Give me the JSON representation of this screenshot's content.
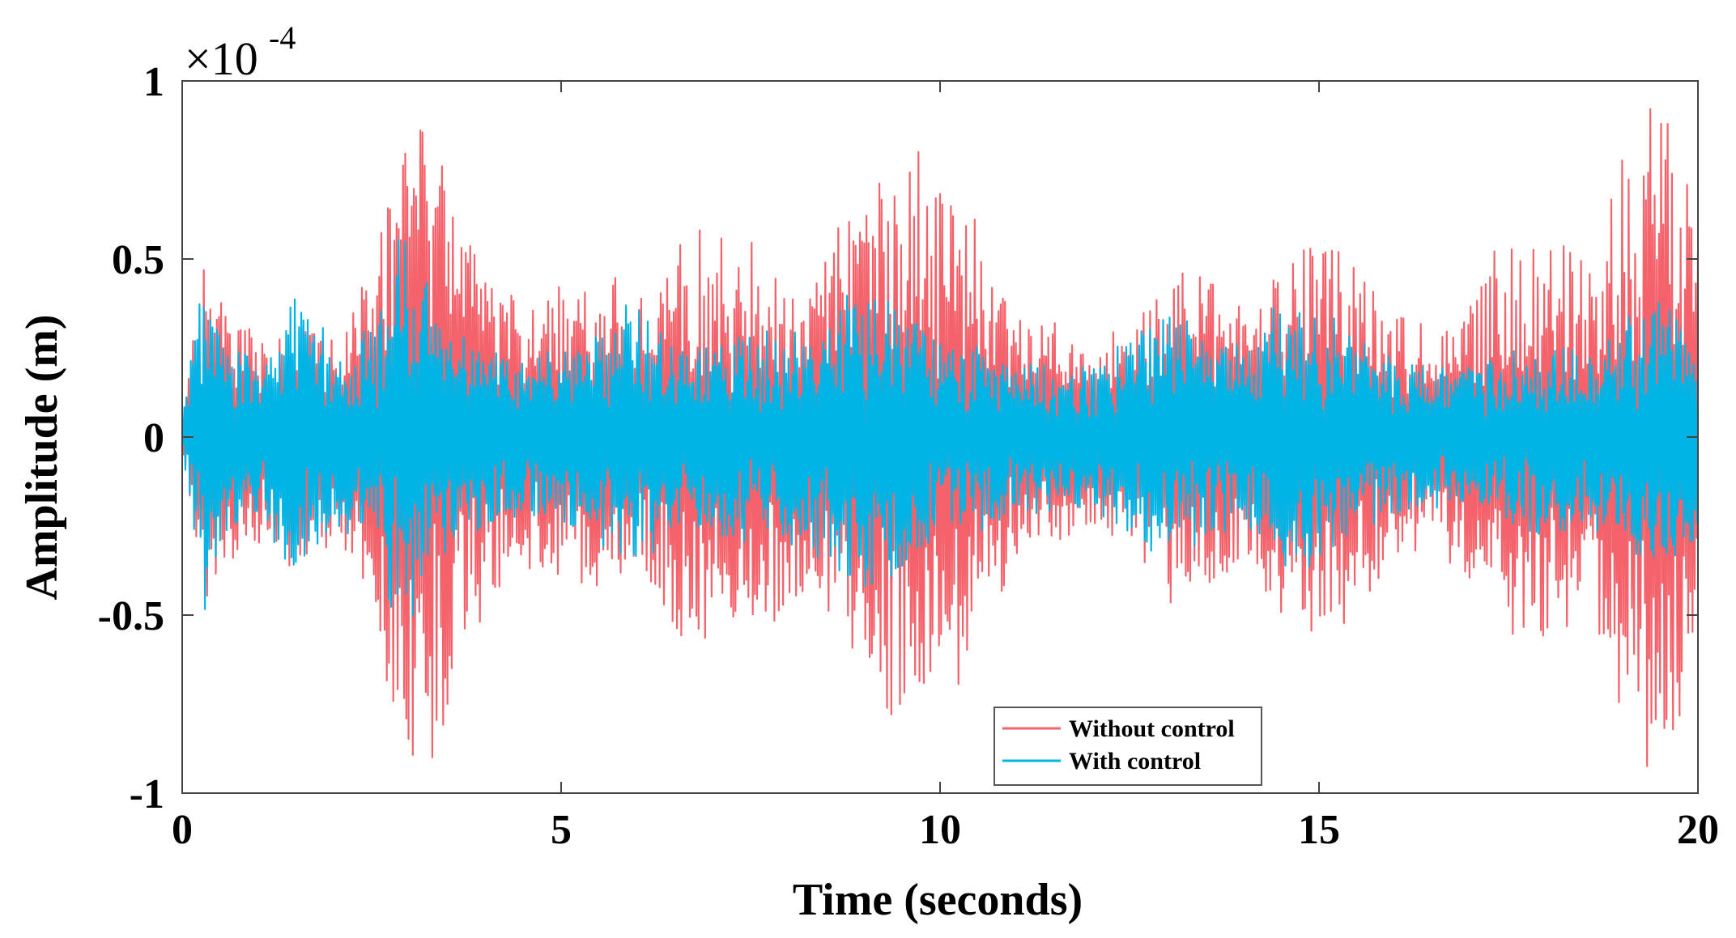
{
  "chart_data": {
    "type": "line",
    "title": "",
    "xlabel": "Time (seconds)",
    "ylabel": "Amplitude (m)",
    "xlim": [
      0,
      20
    ],
    "ylim": [
      -1,
      1
    ],
    "y_scale_exponent_text": "×10",
    "y_scale_exponent_power": "-4",
    "xticks": [
      0,
      5,
      10,
      15,
      20
    ],
    "xtick_labels": [
      "0",
      "5",
      "10",
      "15",
      "20"
    ],
    "yticks": [
      -1,
      -0.5,
      0,
      0.5,
      1
    ],
    "ytick_labels": [
      "-1",
      "-0.5",
      "0",
      "0.5",
      "1"
    ],
    "grid": false,
    "legend_position": "bottom-center",
    "series": [
      {
        "name": "Without control",
        "color": "#f4636b",
        "envelope": {
          "t": [
            0,
            0.3,
            0.6,
            1.0,
            1.5,
            2.0,
            2.5,
            2.9,
            3.2,
            3.5,
            4.0,
            4.5,
            5.0,
            5.5,
            6.0,
            6.5,
            7.0,
            7.5,
            8.0,
            8.5,
            9.0,
            9.5,
            9.8,
            10.2,
            10.6,
            11.0,
            11.5,
            12.0,
            12.5,
            13.0,
            13.5,
            14.0,
            14.5,
            15.0,
            15.5,
            16.0,
            16.5,
            17.0,
            17.5,
            18.0,
            18.5,
            19.0,
            19.3,
            19.6,
            20.0
          ],
          "amplitude": [
            0.05,
            0.5,
            0.35,
            0.3,
            0.35,
            0.3,
            0.45,
            0.85,
            0.93,
            0.75,
            0.45,
            0.4,
            0.42,
            0.45,
            0.38,
            0.55,
            0.58,
            0.55,
            0.45,
            0.5,
            0.72,
            0.78,
            0.86,
            0.7,
            0.5,
            0.38,
            0.3,
            0.25,
            0.3,
            0.5,
            0.45,
            0.35,
            0.5,
            0.6,
            0.5,
            0.35,
            0.3,
            0.4,
            0.55,
            0.6,
            0.5,
            0.75,
            0.93,
            0.85,
            0.75
          ]
        }
      },
      {
        "name": "With control",
        "color": "#00b4e6",
        "envelope": {
          "t": [
            0,
            0.3,
            0.6,
            1.0,
            1.5,
            2.0,
            2.5,
            2.9,
            3.2,
            3.5,
            4.0,
            4.5,
            5.0,
            5.5,
            6.0,
            6.5,
            7.0,
            7.5,
            8.0,
            8.5,
            9.0,
            9.5,
            9.8,
            10.2,
            10.6,
            11.0,
            11.5,
            12.0,
            12.5,
            13.0,
            13.5,
            14.0,
            14.5,
            15.0,
            15.5,
            16.0,
            16.5,
            17.0,
            17.5,
            18.0,
            18.5,
            19.0,
            19.3,
            19.6,
            20.0
          ],
          "amplitude": [
            0.05,
            0.48,
            0.25,
            0.22,
            0.4,
            0.25,
            0.3,
            0.58,
            0.45,
            0.3,
            0.25,
            0.22,
            0.25,
            0.3,
            0.38,
            0.25,
            0.28,
            0.3,
            0.28,
            0.35,
            0.45,
            0.38,
            0.32,
            0.25,
            0.25,
            0.22,
            0.2,
            0.2,
            0.28,
            0.35,
            0.3,
            0.25,
            0.38,
            0.35,
            0.28,
            0.22,
            0.2,
            0.2,
            0.25,
            0.28,
            0.25,
            0.3,
            0.38,
            0.35,
            0.3
          ]
        }
      }
    ]
  }
}
